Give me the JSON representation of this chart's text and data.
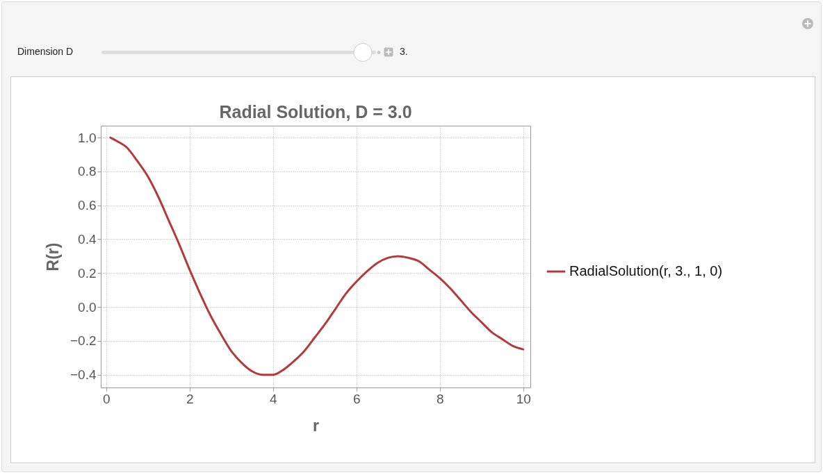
{
  "chart_data": {
    "type": "line",
    "title": "Radial Solution, D = 3.0",
    "xlabel": "r",
    "ylabel": "R(r)",
    "annotations": [
      "Dimension D",
      "3."
    ],
    "x": [
      0.1,
      0.25,
      0.5,
      0.75,
      1.0,
      1.25,
      1.5,
      1.75,
      2.0,
      2.25,
      2.5,
      2.75,
      3.0,
      3.25,
      3.5,
      3.75,
      4.0,
      4.25,
      4.5,
      4.75,
      5.0,
      5.25,
      5.5,
      5.75,
      6.0,
      6.25,
      6.5,
      6.75,
      7.0,
      7.25,
      7.5,
      7.75,
      8.0,
      8.25,
      8.5,
      8.75,
      9.0,
      9.25,
      9.5,
      9.75,
      10.0
    ],
    "series": [
      {
        "name": "RadialSolution(r, 3., 1, 0)",
        "color": "#b5393b",
        "values": [
          1.0,
          0.98,
          0.94,
          0.86,
          0.77,
          0.65,
          0.51,
          0.37,
          0.22,
          0.08,
          -0.05,
          -0.16,
          -0.26,
          -0.33,
          -0.38,
          -0.4,
          -0.4,
          -0.37,
          -0.32,
          -0.26,
          -0.18,
          -0.1,
          -0.01,
          0.08,
          0.15,
          0.21,
          0.26,
          0.29,
          0.3,
          0.29,
          0.27,
          0.22,
          0.17,
          0.11,
          0.04,
          -0.03,
          -0.09,
          -0.15,
          -0.19,
          -0.23,
          -0.25
        ]
      }
    ],
    "xlim": [
      -0.13,
      10.17
    ],
    "ylim": [
      -0.475,
      1.07
    ],
    "xticks": [
      0,
      2,
      4,
      6,
      8,
      10
    ],
    "yticks": [
      {
        "value": -0.4,
        "label": "−0.4"
      },
      {
        "value": -0.2,
        "label": "−0.2"
      },
      {
        "value": 0,
        "label": "0.0"
      },
      {
        "value": 0.2,
        "label": "0.2"
      },
      {
        "value": 0.4,
        "label": "0.4"
      },
      {
        "value": 0.6,
        "label": "0.6"
      },
      {
        "value": 0.8,
        "label": "0.8"
      },
      {
        "value": 1.0,
        "label": "1.0"
      }
    ],
    "grid": true,
    "legend": "right"
  }
}
